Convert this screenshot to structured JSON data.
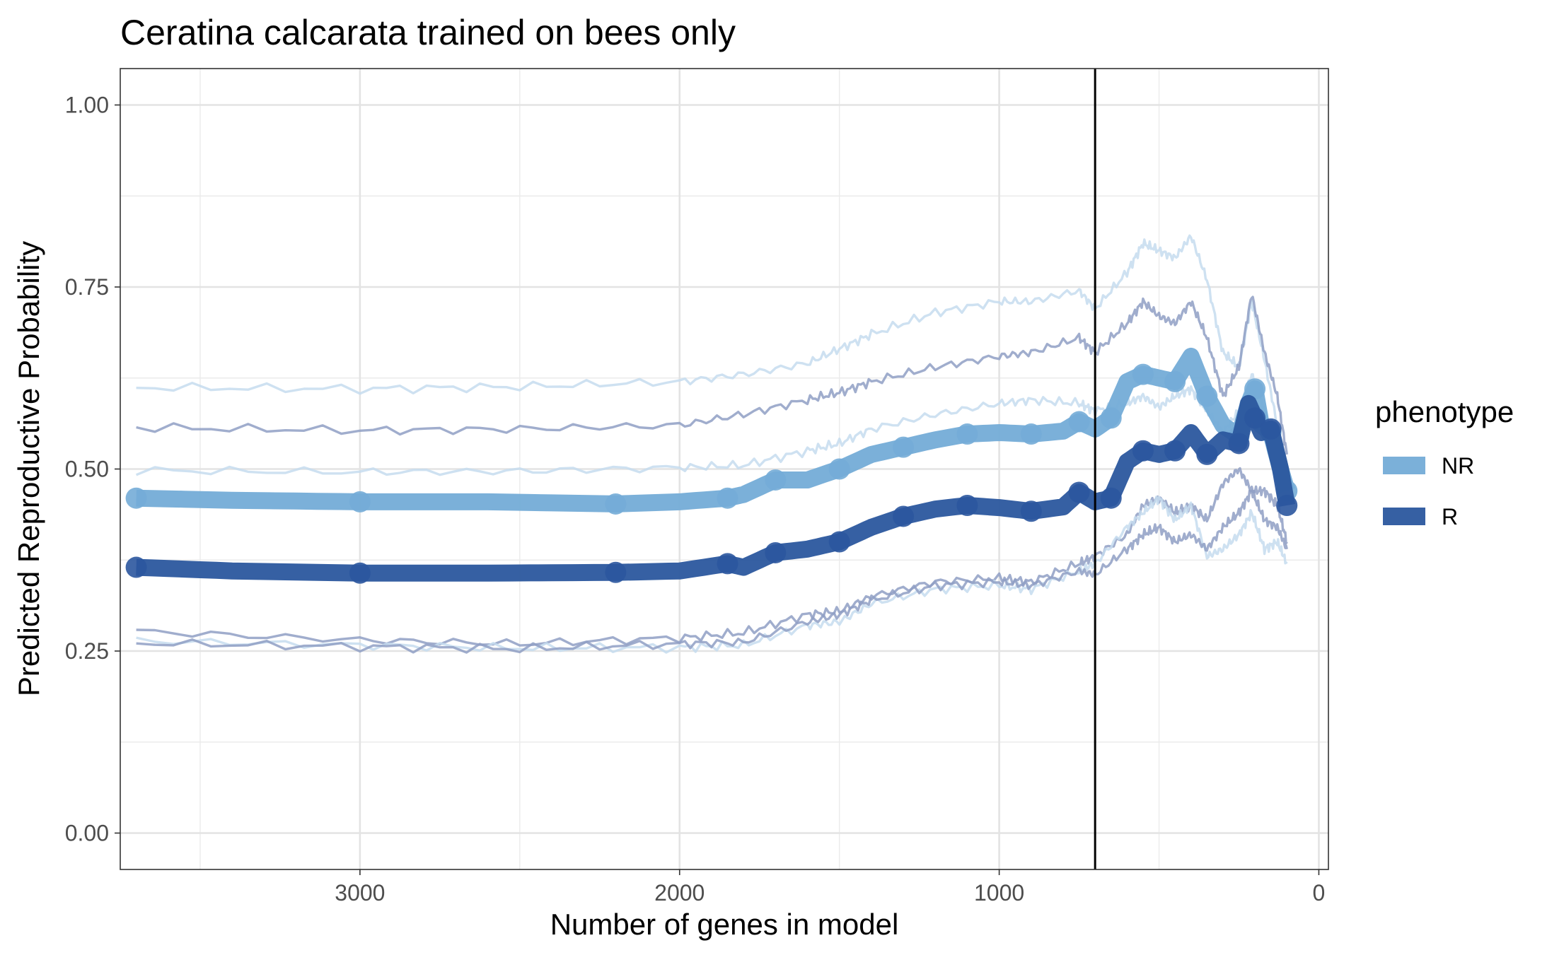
{
  "chart_data": {
    "type": "line",
    "title": "Ceratina calcarata trained on bees only",
    "xlabel": "Number of genes in model",
    "ylabel": "Predicted Reproductive Probability",
    "xlim": [
      3750,
      -30
    ],
    "x_reversed": true,
    "ylim": [
      -0.05,
      1.05
    ],
    "x_ticks": [
      3000,
      2000,
      1000,
      0
    ],
    "x_tick_labels": [
      "3000",
      "2000",
      "1000",
      "0"
    ],
    "y_ticks": [
      0,
      0.25,
      0.5,
      0.75,
      1
    ],
    "y_tick_labels": [
      "0.00",
      "0.25",
      "0.50",
      "0.75",
      "1.00"
    ],
    "grid": true,
    "vline": 700,
    "legend": {
      "title": "phenotype",
      "position": "right",
      "entries": [
        {
          "label": "NR",
          "color": "#74acd7"
        },
        {
          "label": "R",
          "color": "#2b579e"
        }
      ]
    },
    "series": [
      {
        "name": "NR",
        "role": "mean",
        "color": "#74acd7",
        "x": [
          3700,
          3400,
          3000,
          2600,
          2200,
          2000,
          1850,
          1800,
          1700,
          1600,
          1500,
          1400,
          1300,
          1200,
          1100,
          1000,
          900,
          800,
          750,
          700,
          650,
          600,
          550,
          500,
          450,
          400,
          350,
          300,
          250,
          220,
          200,
          180,
          150,
          120,
          100
        ],
        "y": [
          0.46,
          0.457,
          0.455,
          0.455,
          0.452,
          0.455,
          0.46,
          0.465,
          0.485,
          0.485,
          0.5,
          0.52,
          0.53,
          0.54,
          0.548,
          0.55,
          0.548,
          0.552,
          0.565,
          0.555,
          0.57,
          0.62,
          0.63,
          0.625,
          0.62,
          0.655,
          0.6,
          0.56,
          0.545,
          0.59,
          0.61,
          0.56,
          0.55,
          0.5,
          0.47
        ]
      },
      {
        "name": "R",
        "role": "mean",
        "color": "#2b579e",
        "x": [
          3700,
          3400,
          3000,
          2600,
          2200,
          2000,
          1850,
          1800,
          1700,
          1600,
          1500,
          1400,
          1300,
          1200,
          1100,
          1000,
          900,
          800,
          750,
          700,
          650,
          600,
          550,
          500,
          450,
          400,
          350,
          300,
          250,
          220,
          200,
          180,
          150,
          120,
          100
        ],
        "y": [
          0.365,
          0.36,
          0.357,
          0.357,
          0.358,
          0.36,
          0.37,
          0.365,
          0.385,
          0.39,
          0.4,
          0.42,
          0.435,
          0.445,
          0.45,
          0.447,
          0.442,
          0.448,
          0.468,
          0.455,
          0.46,
          0.51,
          0.525,
          0.52,
          0.525,
          0.55,
          0.52,
          0.54,
          0.535,
          0.59,
          0.57,
          0.55,
          0.555,
          0.5,
          0.45
        ]
      },
      {
        "name": "NR",
        "role": "upper",
        "color": "#c6dcef",
        "x": [
          3700,
          3000,
          2500,
          2000,
          1800,
          1600,
          1500,
          1400,
          1200,
          1000,
          900,
          750,
          700,
          600,
          550,
          500,
          450,
          400,
          350,
          300,
          250,
          210,
          170,
          130,
          100
        ],
        "y": [
          0.612,
          0.61,
          0.613,
          0.62,
          0.63,
          0.645,
          0.665,
          0.685,
          0.715,
          0.73,
          0.73,
          0.745,
          0.72,
          0.77,
          0.81,
          0.8,
          0.79,
          0.82,
          0.76,
          0.66,
          0.64,
          0.73,
          0.65,
          0.56,
          0.5
        ]
      },
      {
        "name": "R",
        "role": "upper",
        "color": "#8f9fc4",
        "x": [
          3700,
          3000,
          2500,
          2000,
          1800,
          1600,
          1500,
          1400,
          1200,
          1000,
          900,
          750,
          700,
          600,
          550,
          500,
          450,
          400,
          350,
          300,
          250,
          210,
          170,
          130,
          100
        ],
        "y": [
          0.557,
          0.553,
          0.555,
          0.56,
          0.575,
          0.595,
          0.605,
          0.62,
          0.64,
          0.655,
          0.66,
          0.68,
          0.66,
          0.7,
          0.73,
          0.71,
          0.7,
          0.73,
          0.68,
          0.6,
          0.64,
          0.74,
          0.66,
          0.6,
          0.52
        ]
      },
      {
        "name": "NR",
        "role": "inner",
        "color": "#c6dcef",
        "x": [
          3700,
          3000,
          2500,
          2000,
          1800,
          1600,
          1500,
          1400,
          1200,
          1000,
          900,
          750,
          700,
          600,
          550,
          500,
          450,
          400,
          350,
          300,
          250,
          210,
          170,
          130,
          100
        ],
        "y": [
          0.498,
          0.496,
          0.497,
          0.502,
          0.505,
          0.525,
          0.535,
          0.555,
          0.575,
          0.59,
          0.595,
          0.59,
          0.58,
          0.59,
          0.6,
          0.585,
          0.6,
          0.61,
          0.58,
          0.55,
          0.58,
          0.63,
          0.58,
          0.5,
          0.47
        ]
      },
      {
        "name": "R",
        "role": "lower",
        "color": "#8f9fc4",
        "x": [
          3700,
          3000,
          2500,
          2000,
          1800,
          1600,
          1500,
          1400,
          1200,
          1000,
          900,
          750,
          700,
          600,
          550,
          500,
          450,
          400,
          350,
          300,
          250,
          210,
          170,
          130,
          100
        ],
        "y": [
          0.277,
          0.265,
          0.26,
          0.268,
          0.275,
          0.3,
          0.305,
          0.325,
          0.345,
          0.35,
          0.345,
          0.37,
          0.38,
          0.41,
          0.45,
          0.46,
          0.44,
          0.45,
          0.43,
          0.48,
          0.5,
          0.47,
          0.47,
          0.45,
          0.4
        ]
      },
      {
        "name": "NR",
        "role": "lower",
        "color": "#c6dcef",
        "x": [
          3700,
          3000,
          2500,
          2000,
          1800,
          1600,
          1500,
          1400,
          1200,
          1000,
          900,
          750,
          700,
          600,
          550,
          500,
          450,
          400,
          350,
          300,
          250,
          210,
          170,
          130,
          100
        ],
        "y": [
          0.264,
          0.258,
          0.254,
          0.255,
          0.258,
          0.285,
          0.29,
          0.315,
          0.335,
          0.34,
          0.335,
          0.36,
          0.37,
          0.42,
          0.44,
          0.46,
          0.43,
          0.45,
          0.38,
          0.39,
          0.41,
          0.44,
          0.39,
          0.4,
          0.37
        ]
      },
      {
        "name": "R",
        "role": "lower2",
        "color": "#8f9fc4",
        "x": [
          3700,
          3000,
          2500,
          2000,
          1800,
          1600,
          1500,
          1400,
          1200,
          1000,
          900,
          750,
          700,
          600,
          550,
          500,
          450,
          400,
          350,
          300,
          250,
          210,
          170,
          130,
          100
        ],
        "y": [
          0.261,
          0.256,
          0.253,
          0.26,
          0.262,
          0.29,
          0.3,
          0.32,
          0.34,
          0.345,
          0.34,
          0.36,
          0.355,
          0.39,
          0.41,
          0.42,
          0.4,
          0.41,
          0.39,
          0.42,
          0.44,
          0.47,
          0.43,
          0.42,
          0.39
        ]
      }
    ]
  }
}
